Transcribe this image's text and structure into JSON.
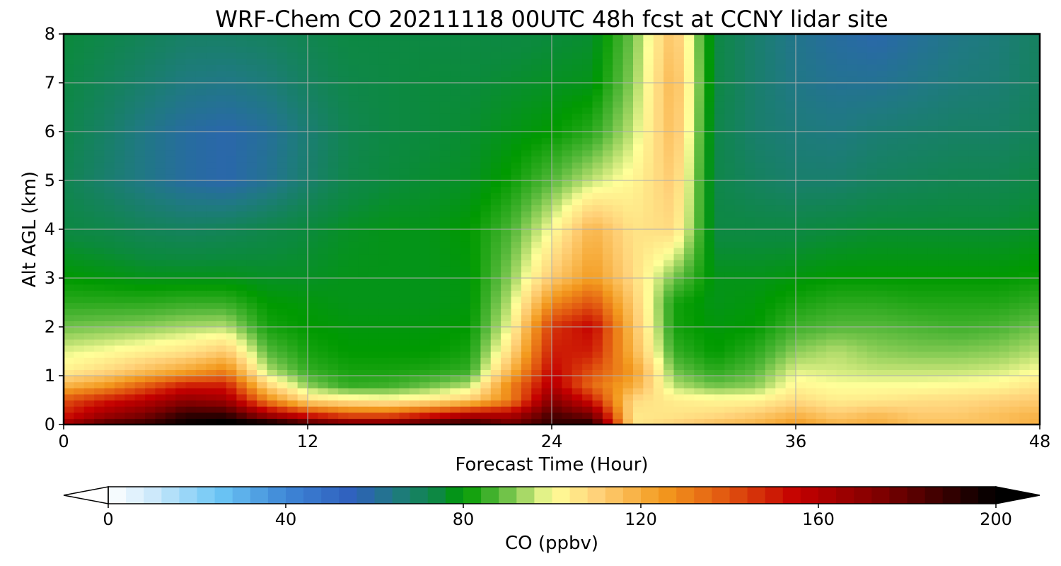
{
  "chart_data": {
    "type": "heatmap",
    "title": "WRF-Chem CO  20211118 00UTC 48h fcst at CCNY lidar site",
    "xlabel": "Forecast Time (Hour)",
    "ylabel": "Alt AGL (km)",
    "xlim": [
      0,
      48
    ],
    "ylim": [
      0,
      8
    ],
    "x_ticks": [
      0,
      12,
      24,
      36,
      48
    ],
    "y_ticks": [
      0,
      1,
      2,
      3,
      4,
      5,
      6,
      7,
      8
    ],
    "grid": true,
    "colorbar": {
      "label": "CO  (ppbv)",
      "range": [
        0,
        200
      ],
      "ticks": [
        0,
        40,
        80,
        120,
        160,
        200
      ],
      "extend": "both",
      "colormap": [
        [
          0,
          "#ffffff"
        ],
        [
          10,
          "#cde9fb"
        ],
        [
          25,
          "#6cc6f5"
        ],
        [
          40,
          "#3e86d6"
        ],
        [
          55,
          "#2f5fbd"
        ],
        [
          65,
          "#1f7a80"
        ],
        [
          75,
          "#0b8a3c"
        ],
        [
          80,
          "#009a00"
        ],
        [
          88,
          "#55b83a"
        ],
        [
          95,
          "#b6de6e"
        ],
        [
          100,
          "#ffff99"
        ],
        [
          110,
          "#ffd27a"
        ],
        [
          125,
          "#f39a1e"
        ],
        [
          140,
          "#e0520f"
        ],
        [
          155,
          "#c40000"
        ],
        [
          175,
          "#7a0000"
        ],
        [
          200,
          "#000000"
        ]
      ]
    },
    "altitudes_km": [
      0,
      0.2,
      0.5,
      0.8,
      1.1,
      1.5,
      2,
      2.5,
      3,
      4,
      5,
      6,
      7,
      8
    ],
    "times_h": [
      0,
      2,
      4,
      6,
      8,
      10,
      12,
      14,
      16,
      18,
      20,
      22,
      24,
      26,
      28,
      30,
      32,
      34,
      36,
      38,
      40,
      42,
      44,
      46,
      48
    ],
    "co_ppbv": [
      [
        165,
        185,
        190,
        200,
        205,
        205,
        190,
        180,
        180,
        190,
        195,
        180,
        190,
        195,
        105,
        110,
        115,
        118,
        125,
        118,
        120,
        115,
        115,
        115,
        120
      ],
      [
        150,
        165,
        175,
        190,
        190,
        165,
        150,
        140,
        140,
        150,
        160,
        160,
        185,
        175,
        105,
        106,
        108,
        112,
        118,
        112,
        116,
        112,
        112,
        115,
        118
      ],
      [
        140,
        150,
        158,
        170,
        165,
        130,
        108,
        104,
        102,
        105,
        112,
        130,
        172,
        150,
        108,
        104,
        102,
        102,
        108,
        104,
        105,
        107,
        108,
        110,
        112
      ],
      [
        118,
        125,
        138,
        150,
        150,
        110,
        92,
        85,
        86,
        90,
        95,
        130,
        160,
        135,
        120,
        95,
        90,
        92,
        102,
        100,
        100,
        100,
        101,
        102,
        106
      ],
      [
        103,
        108,
        115,
        122,
        130,
        95,
        85,
        82,
        82,
        83,
        85,
        118,
        155,
        140,
        125,
        90,
        84,
        88,
        98,
        97,
        96,
        96,
        96,
        97,
        100
      ],
      [
        98,
        100,
        103,
        106,
        112,
        88,
        82,
        80,
        80,
        80,
        82,
        108,
        150,
        150,
        118,
        85,
        80,
        84,
        92,
        95,
        92,
        91,
        91,
        92,
        95
      ],
      [
        90,
        91,
        92,
        94,
        95,
        82,
        80,
        79,
        79,
        79,
        80,
        100,
        145,
        155,
        115,
        82,
        79,
        80,
        86,
        88,
        88,
        87,
        86,
        87,
        90
      ],
      [
        84,
        84,
        84,
        85,
        85,
        80,
        79,
        78,
        78,
        78,
        79,
        96,
        128,
        140,
        112,
        82,
        78,
        79,
        82,
        84,
        84,
        83,
        83,
        83,
        85
      ],
      [
        80,
        79,
        78,
        78,
        78,
        77,
        77,
        78,
        78,
        78,
        79,
        92,
        112,
        125,
        108,
        90,
        78,
        78,
        79,
        80,
        80,
        80,
        80,
        80,
        81
      ],
      [
        74,
        73,
        71,
        70,
        71,
        73,
        75,
        77,
        78,
        78,
        80,
        87,
        100,
        118,
        106,
        108,
        74,
        74,
        74,
        75,
        76,
        76,
        76,
        76,
        77
      ],
      [
        72,
        68,
        64,
        60,
        58,
        62,
        68,
        73,
        75,
        76,
        77,
        81,
        88,
        96,
        102,
        112,
        73,
        70,
        68,
        68,
        70,
        71,
        72,
        72,
        74
      ],
      [
        73,
        69,
        64,
        60,
        58,
        61,
        67,
        72,
        74,
        75,
        76,
        78,
        80,
        84,
        96,
        116,
        73,
        68,
        66,
        65,
        67,
        68,
        69,
        69,
        71
      ],
      [
        74,
        71,
        68,
        65,
        64,
        66,
        70,
        73,
        74,
        75,
        75,
        76,
        77,
        78,
        92,
        118,
        74,
        68,
        64,
        62,
        62,
        64,
        66,
        67,
        70
      ],
      [
        75,
        73,
        71,
        69,
        69,
        70,
        72,
        74,
        74,
        74,
        74,
        74,
        75,
        76,
        90,
        115,
        74,
        68,
        63,
        60,
        58,
        61,
        64,
        66,
        70
      ]
    ]
  }
}
